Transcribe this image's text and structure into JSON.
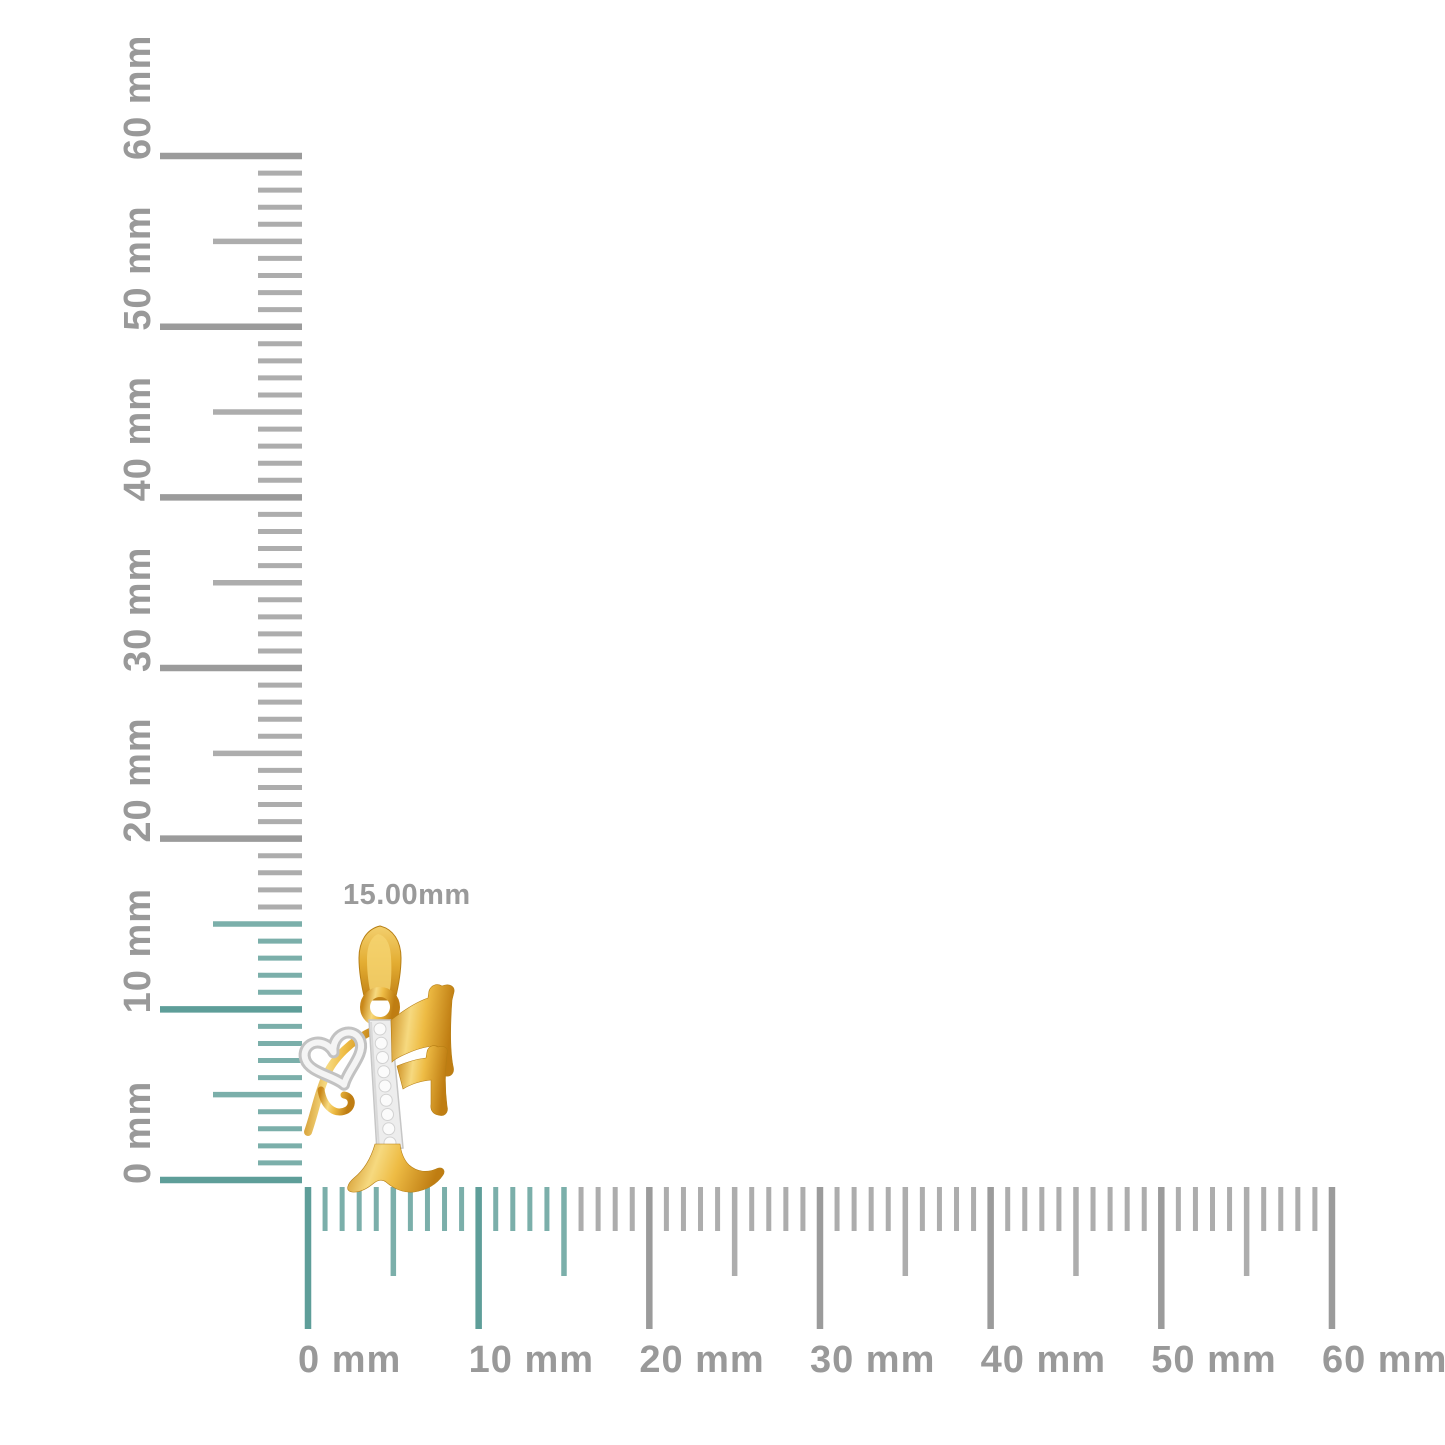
{
  "figure": {
    "type": "product-measurement",
    "unit": "mm",
    "dimension_label": "15.00mm",
    "highlight_extent_mm": 15,
    "colors": {
      "background": "#FFFFFF",
      "highlight_major": "#5E9E99",
      "highlight_minor": "#7BAFAA",
      "gray_major": "#9B9B9B",
      "gray_minor": "#ADADAD",
      "label_text": "#999999",
      "gold": "#E2AC33",
      "gold_highlight": "#F6D97F",
      "gold_shadow": "#BF7D12",
      "white_metal": "#EDEDED",
      "white_metal_edge": "#C6C6C6"
    },
    "vertical_ruler": {
      "min_mm": 0,
      "max_mm": 60,
      "tick_step_mm": 1,
      "half_step_mm": 5,
      "major_step_mm": 10,
      "labels": [
        "0 mm",
        "10 mm",
        "20 mm",
        "30 mm",
        "40 mm",
        "50 mm",
        "60 mm"
      ]
    },
    "horizontal_ruler": {
      "min_mm": 0,
      "max_mm": 60,
      "tick_step_mm": 1,
      "half_step_mm": 5,
      "major_step_mm": 10,
      "labels": [
        "0 mm",
        "10 mm",
        "20 mm",
        "30 mm",
        "40 mm",
        "50 mm",
        "60 mm"
      ]
    },
    "pendant": {
      "name": "gold letter-F pendant with diamond stem and heart accent"
    }
  }
}
